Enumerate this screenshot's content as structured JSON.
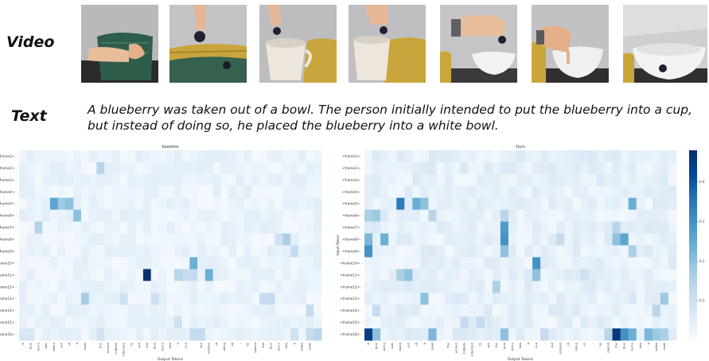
{
  "labels": {
    "video": "Video",
    "text": "Text"
  },
  "caption": "A blueberry was taken out of a bowl. The person initially intended to put the blueberry into a cup, but instead of doing so, he placed the blueberry into a white bowl.",
  "video_frames": [
    {
      "scene": "hand-in-green-basket"
    },
    {
      "scene": "hand-dropping-blueberry-into-yellow-basket"
    },
    {
      "scene": "hand-holding-blueberry-over-cup"
    },
    {
      "scene": "hand-holding-blueberry-over-cup-near-basket"
    },
    {
      "scene": "hand-holding-blueberry-over-white-bowl"
    },
    {
      "scene": "hand-placing-blueberry-in-white-bowl"
    },
    {
      "scene": "blueberry-in-white-bowl"
    }
  ],
  "chart_data": [
    {
      "type": "heatmap",
      "title": "baseline",
      "xlabel": "Output Tokens",
      "ylabel": "",
      "rows": [
        "<frame1>",
        "<frame2>",
        "<frame3>",
        "<frame4>",
        "<frame5>",
        "<frame6>",
        "<frame7>",
        "<frame8>",
        "<frame9>",
        "<frame10>",
        "<frame11>",
        "<frame12>",
        "<frame13>",
        "<frame14>",
        "<frame15>",
        "<frame16>"
      ],
      "columns": [
        "A",
        "blue",
        "berry",
        "was",
        "taken",
        "out",
        "of",
        "a",
        "bowl",
        ".",
        "The",
        "person",
        "initially",
        "intended",
        "to",
        "put",
        "the",
        "blue",
        "berry",
        "into",
        "a",
        "cup",
        ",",
        "but",
        "instead",
        "of",
        "doing",
        "so",
        ",",
        "he",
        "placed",
        "the",
        "blue",
        "berry",
        "into",
        "a",
        "white",
        "bowl",
        "."
      ],
      "base": 0.03,
      "highlights": [
        [
          4,
          4,
          0.26
        ],
        [
          4,
          5,
          0.18
        ],
        [
          4,
          6,
          0.2
        ],
        [
          5,
          7,
          0.2
        ],
        [
          6,
          2,
          0.15
        ],
        [
          1,
          10,
          0.14
        ],
        [
          7,
          34,
          0.16
        ],
        [
          7,
          33,
          0.1
        ],
        [
          8,
          35,
          0.12
        ],
        [
          9,
          22,
          0.24
        ],
        [
          10,
          16,
          0.48
        ],
        [
          10,
          22,
          0.12
        ],
        [
          10,
          24,
          0.24
        ],
        [
          10,
          20,
          0.14
        ],
        [
          10,
          21,
          0.12
        ],
        [
          12,
          8,
          0.17
        ],
        [
          12,
          13,
          0.1
        ],
        [
          12,
          17,
          0.1
        ],
        [
          12,
          31,
          0.12
        ],
        [
          12,
          32,
          0.12
        ],
        [
          13,
          37,
          0.12
        ],
        [
          14,
          20,
          0.1
        ],
        [
          15,
          35,
          0.1
        ],
        [
          15,
          22,
          0.12
        ],
        [
          15,
          23,
          0.12
        ],
        [
          15,
          38,
          0.14
        ],
        [
          15,
          37,
          0.12
        ],
        [
          15,
          0,
          0.08
        ],
        [
          15,
          1,
          0.08
        ],
        [
          15,
          10,
          0.09
        ]
      ]
    },
    {
      "type": "heatmap",
      "title": "Ours",
      "xlabel": "Output Tokens",
      "ylabel": "Input Token",
      "rows": [
        "<frame1>",
        "<frame2>",
        "<frame3>",
        "<frame4>",
        "<frame5>",
        "<frame6>",
        "<frame7>",
        "<frame8>",
        "<frame9>",
        "<frame10>",
        "<frame11>",
        "<frame12>",
        "<frame13>",
        "<frame14>",
        "<frame15>",
        "<frame16>"
      ],
      "columns": [
        "A",
        "blue",
        "berry",
        "was",
        "taken",
        "out",
        "of",
        "a",
        "bowl",
        ".",
        "The",
        "person",
        "initially",
        "intended",
        "to",
        "put",
        "the",
        "blue",
        "berry",
        "into",
        "a",
        "cup",
        ",",
        "but",
        "instead",
        "of",
        "doing",
        "so",
        ",",
        "he",
        "placed",
        "the",
        "blue",
        "berry",
        "into",
        "a",
        "white",
        "bowl",
        "."
      ],
      "colorbar": {
        "min": 0,
        "max": 0.48,
        "ticks": [
          0.1,
          0.2,
          0.3,
          0.4
        ]
      },
      "base": 0.04,
      "highlights": [
        [
          4,
          4,
          0.34
        ],
        [
          4,
          6,
          0.24
        ],
        [
          4,
          7,
          0.2
        ],
        [
          4,
          33,
          0.24
        ],
        [
          5,
          0,
          0.16
        ],
        [
          5,
          1,
          0.18
        ],
        [
          5,
          8,
          0.14
        ],
        [
          5,
          17,
          0.14
        ],
        [
          6,
          17,
          0.28
        ],
        [
          6,
          31,
          0.14
        ],
        [
          7,
          0,
          0.22
        ],
        [
          7,
          2,
          0.24
        ],
        [
          7,
          17,
          0.3
        ],
        [
          7,
          31,
          0.2
        ],
        [
          7,
          32,
          0.26
        ],
        [
          7,
          24,
          0.12
        ],
        [
          8,
          0,
          0.3
        ],
        [
          8,
          17,
          0.2
        ],
        [
          8,
          33,
          0.16
        ],
        [
          9,
          21,
          0.3
        ],
        [
          10,
          5,
          0.2
        ],
        [
          10,
          4,
          0.16
        ],
        [
          10,
          21,
          0.2
        ],
        [
          10,
          27,
          0.1
        ],
        [
          11,
          16,
          0.16
        ],
        [
          12,
          7,
          0.2
        ],
        [
          12,
          37,
          0.18
        ],
        [
          13,
          1,
          0.12
        ],
        [
          13,
          36,
          0.14
        ],
        [
          14,
          12,
          0.12
        ],
        [
          14,
          14,
          0.12
        ],
        [
          15,
          0,
          0.44
        ],
        [
          15,
          1,
          0.2
        ],
        [
          15,
          8,
          0.22
        ],
        [
          15,
          17,
          0.2
        ],
        [
          15,
          31,
          0.46
        ],
        [
          15,
          32,
          0.3
        ],
        [
          15,
          33,
          0.24
        ],
        [
          15,
          35,
          0.22
        ],
        [
          15,
          36,
          0.18
        ],
        [
          15,
          37,
          0.16
        ],
        [
          15,
          30,
          0.14
        ],
        [
          15,
          22,
          0.12
        ]
      ]
    }
  ]
}
